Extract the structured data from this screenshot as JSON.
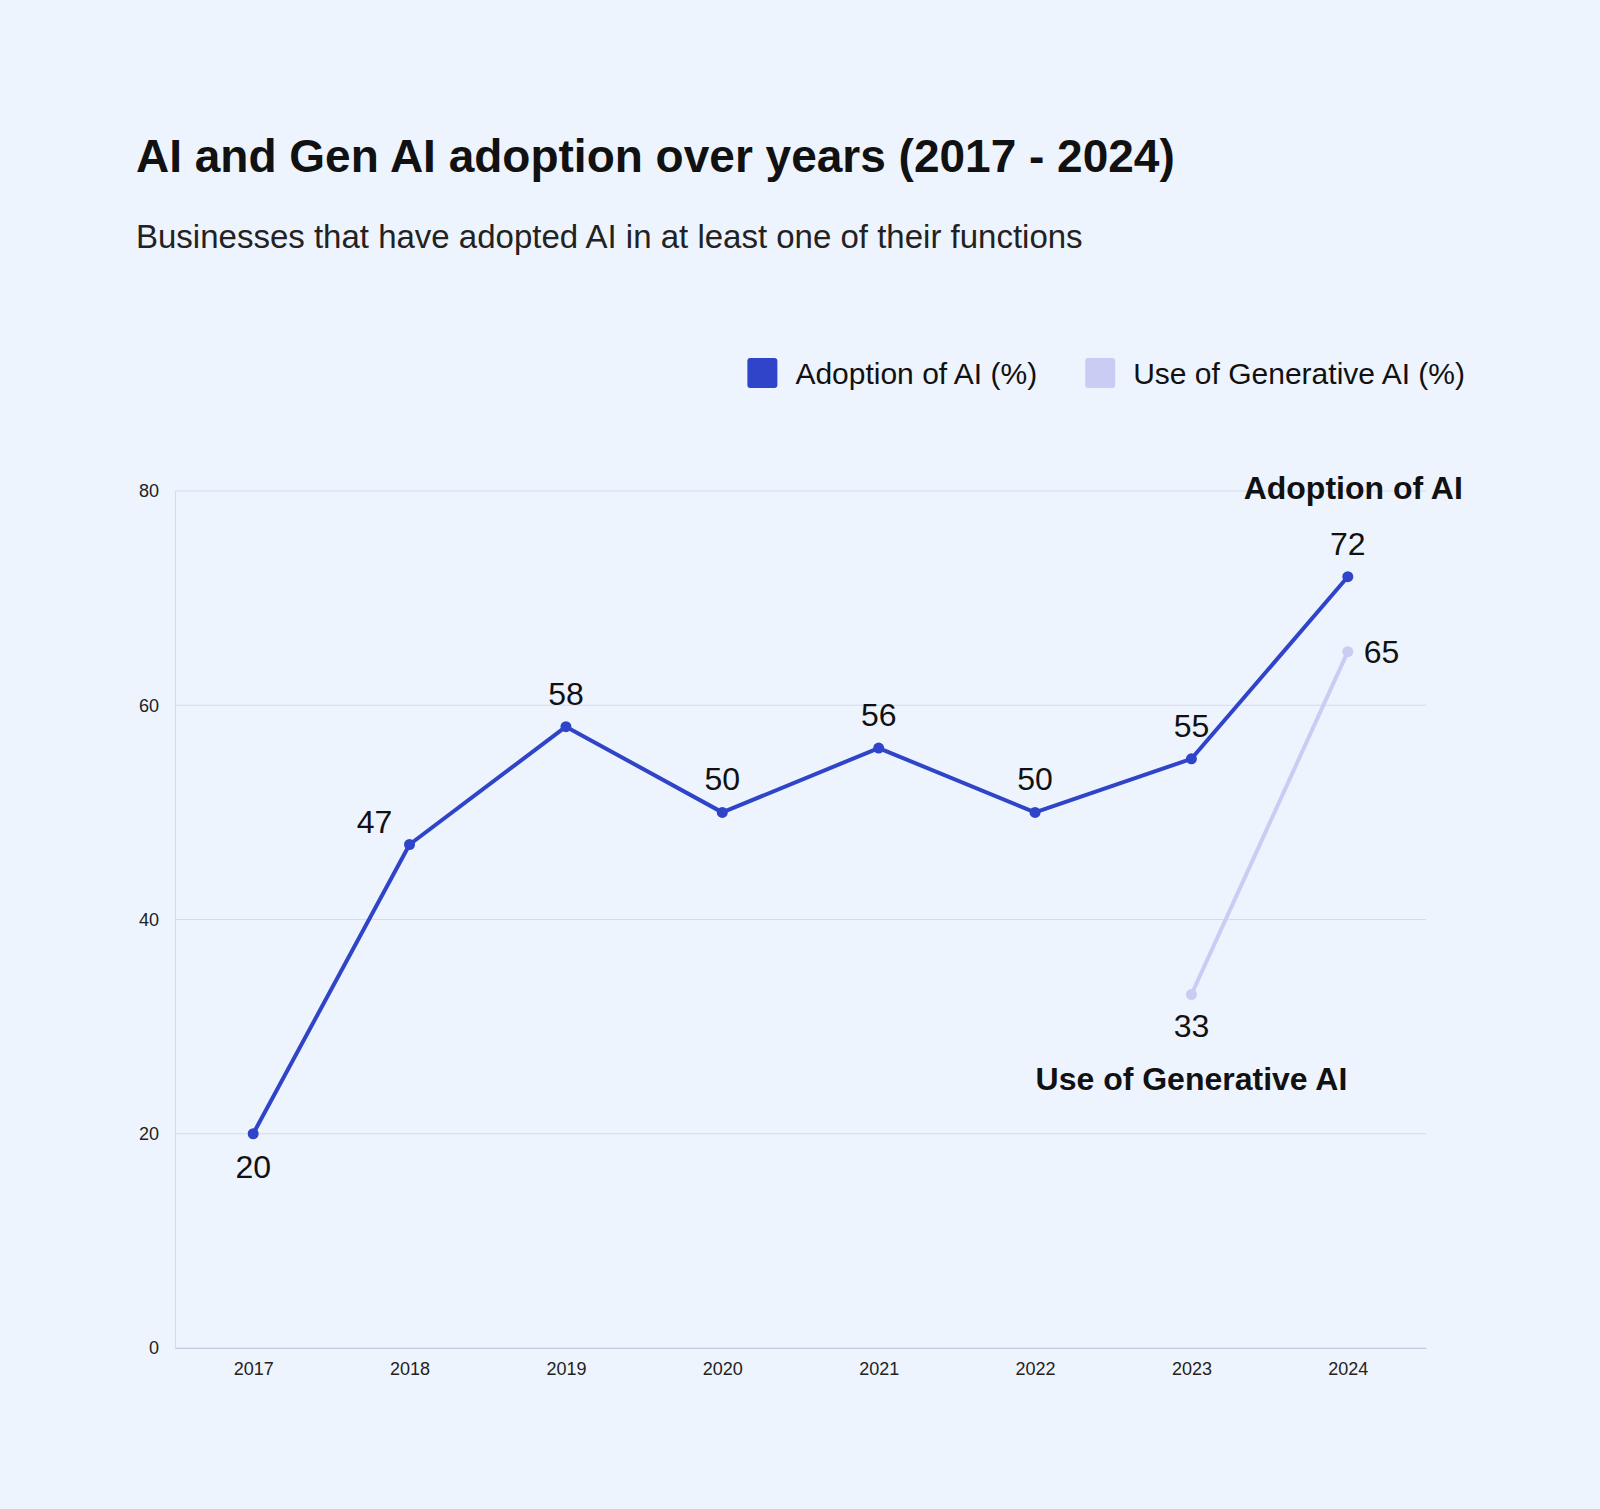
{
  "chart_data": {
    "type": "line",
    "title": "AI and Gen AI adoption over years (2017 - 2024)",
    "subtitle": "Businesses that have adopted AI in at least one of their functions",
    "categories": [
      "2017",
      "2018",
      "2019",
      "2020",
      "2021",
      "2022",
      "2023",
      "2024"
    ],
    "series": [
      {
        "name": "Adoption of AI (%)",
        "label": "Adoption of AI",
        "color": "#2f44c8",
        "values": [
          20,
          47,
          58,
          50,
          56,
          50,
          55,
          72
        ]
      },
      {
        "name": "Use of Generative AI (%)",
        "label": "Use of Generative AI",
        "color": "#c9cdf3",
        "values": [
          null,
          null,
          null,
          null,
          null,
          null,
          33,
          65
        ]
      }
    ],
    "ylim": [
      0,
      80
    ],
    "yticks": [
      0,
      20,
      40,
      60,
      80
    ],
    "grid": true,
    "legend": "top-right",
    "data_labels": true,
    "marker": "circle"
  }
}
